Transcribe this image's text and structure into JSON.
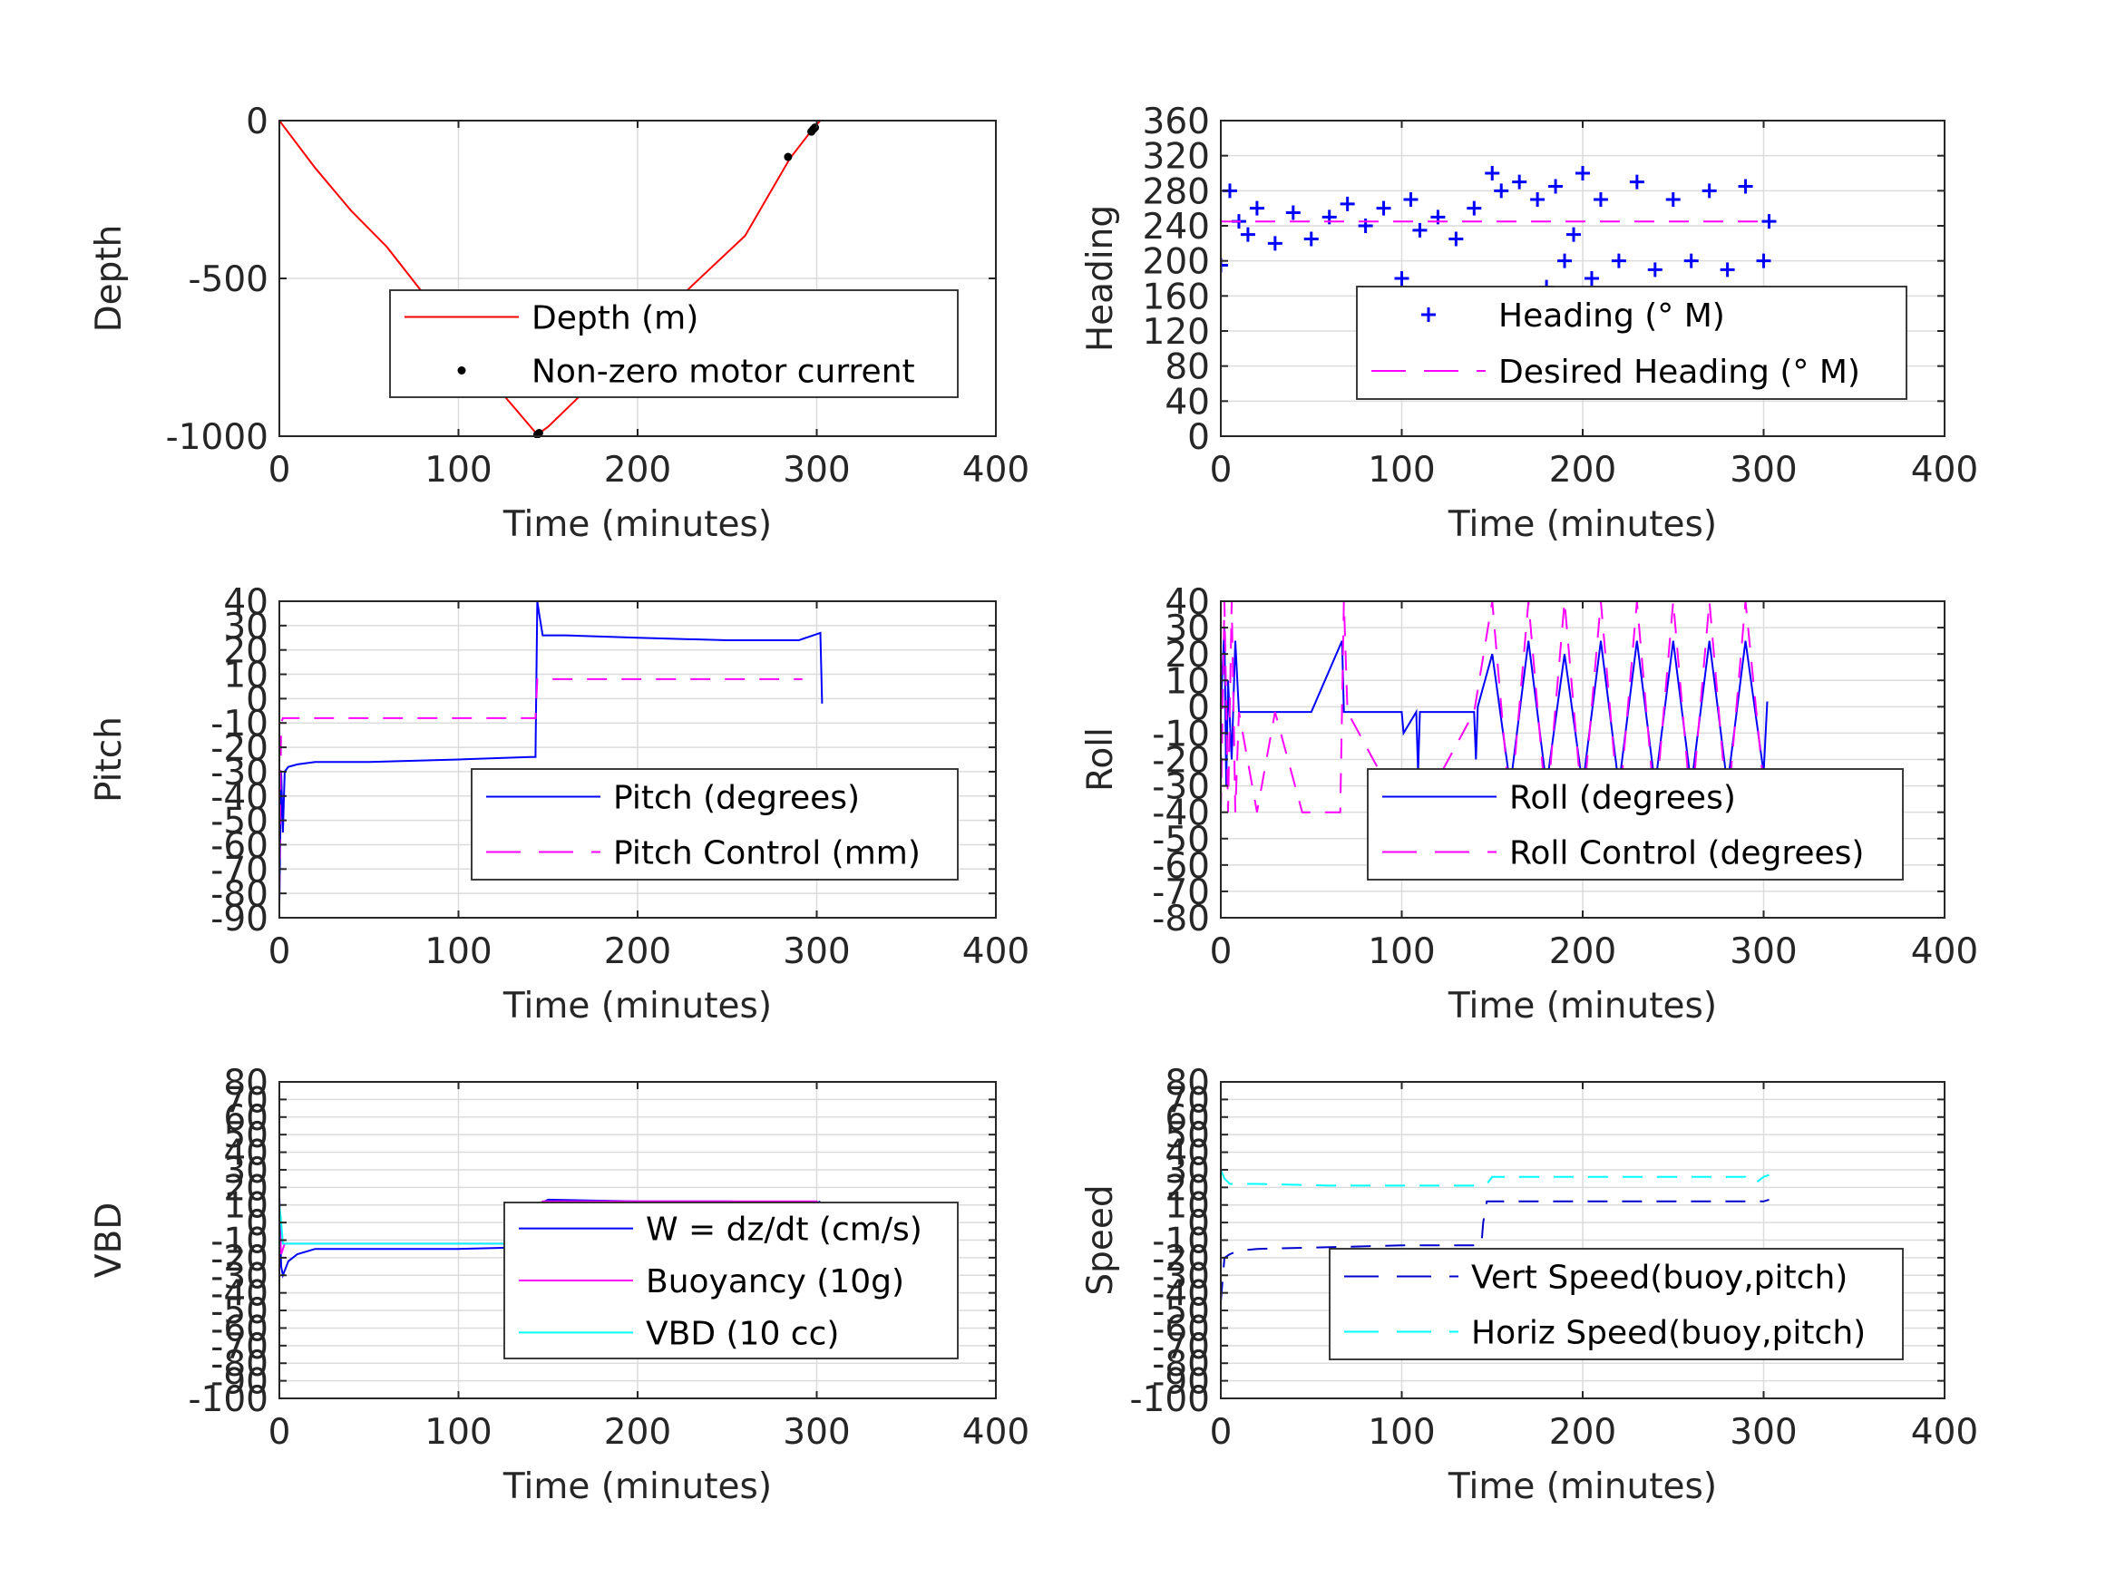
{
  "chart_data": [
    {
      "type": "line",
      "ylabel": "Depth",
      "xlabel": "Time (minutes)",
      "xlim": [
        0,
        400
      ],
      "ylim": [
        -1000,
        0
      ],
      "xticks": [
        0,
        100,
        200,
        300,
        400
      ],
      "yticks": [
        -1000,
        -500,
        0
      ],
      "grid": true,
      "legend_position": "center-right",
      "series": [
        {
          "name": "Depth (m)",
          "color": "#ff0000",
          "style": "solid",
          "marker": "none",
          "x": [
            0,
            20,
            40,
            60,
            80,
            100,
            120,
            144,
            150,
            170,
            200,
            230,
            260,
            285,
            298,
            302
          ],
          "y": [
            0,
            -150,
            -285,
            -400,
            -545,
            -690,
            -835,
            -995,
            -970,
            -860,
            -690,
            -525,
            -365,
            -120,
            -25,
            0
          ]
        },
        {
          "name": "Non-zero motor current",
          "color": "#000000",
          "style": "none",
          "marker": "dot",
          "x": [
            144,
            145,
            284,
            297,
            298,
            299
          ],
          "y": [
            -995,
            -990,
            -115,
            -35,
            -28,
            -22
          ]
        }
      ]
    },
    {
      "type": "line",
      "ylabel": "Heading",
      "xlabel": "Time (minutes)",
      "xlim": [
        0,
        400
      ],
      "ylim": [
        0,
        360
      ],
      "xticks": [
        0,
        100,
        200,
        300,
        400
      ],
      "yticks": [
        0,
        40,
        80,
        120,
        160,
        200,
        240,
        280,
        320,
        360
      ],
      "grid": true,
      "legend_position": "center-right",
      "series": [
        {
          "name": "Heading (° M)",
          "color": "#0000ff",
          "style": "none",
          "marker": "plus",
          "x": [
            0,
            5,
            10,
            15,
            20,
            30,
            40,
            50,
            60,
            70,
            80,
            90,
            100,
            105,
            110,
            120,
            130,
            140,
            150,
            155,
            160,
            165,
            170,
            175,
            180,
            185,
            190,
            195,
            200,
            205,
            210,
            220,
            230,
            240,
            250,
            260,
            270,
            280,
            290,
            300,
            303
          ],
          "y": [
            195,
            280,
            245,
            230,
            260,
            220,
            255,
            225,
            250,
            265,
            240,
            260,
            180,
            270,
            235,
            250,
            225,
            260,
            300,
            280,
            150,
            290,
            140,
            270,
            170,
            285,
            200,
            230,
            300,
            180,
            270,
            200,
            290,
            190,
            270,
            200,
            280,
            190,
            285,
            200,
            245
          ]
        },
        {
          "name": "Desired Heading (° M)",
          "color": "#ff00ff",
          "style": "dashed",
          "marker": "none",
          "x": [
            0,
            300
          ],
          "y": [
            245,
            245
          ]
        }
      ]
    },
    {
      "type": "line",
      "ylabel": "Pitch",
      "xlabel": "Time (minutes)",
      "xlim": [
        0,
        400
      ],
      "ylim": [
        -90,
        40
      ],
      "xticks": [
        0,
        100,
        200,
        300,
        400
      ],
      "yticks": [
        -90,
        -80,
        -70,
        -60,
        -50,
        -40,
        -30,
        -20,
        -10,
        0,
        10,
        20,
        30,
        40
      ],
      "grid": true,
      "legend_position": "center-right",
      "series": [
        {
          "name": "Pitch (degrees)",
          "color": "#0000ff",
          "style": "solid",
          "marker": "none",
          "x": [
            0,
            1,
            2,
            3,
            5,
            10,
            20,
            50,
            100,
            140,
            143,
            144,
            145,
            147,
            160,
            200,
            250,
            290,
            302,
            303
          ],
          "y": [
            -85,
            -30,
            -55,
            -30,
            -28,
            -27,
            -26,
            -26,
            -25,
            -24,
            -24,
            40,
            35,
            26,
            26,
            25,
            24,
            24,
            27,
            -2
          ]
        },
        {
          "name": "Pitch Control (mm)",
          "color": "#ff00ff",
          "style": "dashed",
          "marker": "none",
          "x": [
            0,
            1,
            2,
            5,
            143,
            144,
            145,
            150,
            292
          ],
          "y": [
            -80,
            -10,
            -8,
            -8,
            -8,
            8,
            8,
            8,
            8
          ]
        }
      ]
    },
    {
      "type": "line",
      "ylabel": "Roll",
      "xlabel": "Time (minutes)",
      "xlim": [
        0,
        400
      ],
      "ylim": [
        -80,
        40
      ],
      "xticks": [
        0,
        100,
        200,
        300,
        400
      ],
      "yticks": [
        -80,
        -70,
        -60,
        -50,
        -40,
        -30,
        -20,
        -10,
        0,
        10,
        20,
        30,
        40
      ],
      "grid": true,
      "legend_position": "center-right",
      "series": [
        {
          "name": "Roll (degrees)",
          "color": "#0000ff",
          "style": "solid",
          "marker": "none",
          "x": [
            0,
            2,
            3,
            4,
            6,
            8,
            10,
            30,
            50,
            67,
            68,
            69,
            100,
            101,
            108,
            109,
            110,
            140,
            141,
            142,
            150,
            160,
            170,
            180,
            190,
            200,
            210,
            220,
            230,
            240,
            250,
            260,
            270,
            280,
            290,
            300,
            302
          ],
          "y": [
            0,
            30,
            -30,
            10,
            -20,
            25,
            -2,
            -2,
            -2,
            25,
            -2,
            -2,
            -2,
            -10,
            -2,
            -25,
            -2,
            -2,
            -20,
            0,
            20,
            -30,
            25,
            -30,
            20,
            -30,
            25,
            -30,
            25,
            -30,
            25,
            -30,
            25,
            -30,
            25,
            -25,
            2
          ]
        },
        {
          "name": "Roll Control (degrees)",
          "color": "#ff00ff",
          "style": "dashed",
          "marker": "none",
          "x": [
            0,
            2,
            4,
            6,
            8,
            10,
            20,
            30,
            45,
            66,
            68,
            70,
            100,
            110,
            140,
            150,
            160,
            170,
            180,
            190,
            200,
            210,
            220,
            230,
            240,
            250,
            260,
            270,
            280,
            290,
            300
          ],
          "y": [
            -40,
            40,
            -40,
            40,
            -40,
            -2,
            -40,
            -2,
            -40,
            -40,
            40,
            -2,
            -40,
            -40,
            -2,
            40,
            -40,
            40,
            -40,
            40,
            -40,
            40,
            -40,
            40,
            -40,
            40,
            -40,
            40,
            -40,
            40,
            -30
          ]
        }
      ]
    },
    {
      "type": "line",
      "ylabel": "VBD",
      "xlabel": "Time (minutes)",
      "xlim": [
        0,
        400
      ],
      "ylim": [
        -100,
        80
      ],
      "xticks": [
        0,
        100,
        200,
        300,
        400
      ],
      "yticks": [
        -100,
        -90,
        -80,
        -70,
        -60,
        -50,
        -40,
        -30,
        -20,
        -10,
        0,
        10,
        20,
        30,
        40,
        50,
        60,
        70,
        80
      ],
      "grid": true,
      "legend_position": "center-right",
      "series": [
        {
          "name": "W = dz/dt (cm/s)",
          "color": "#0000ff",
          "style": "solid",
          "marker": "none",
          "x": [
            0,
            1,
            2,
            5,
            10,
            20,
            40,
            100,
            140,
            145,
            148,
            150,
            200,
            250,
            300,
            302
          ],
          "y": [
            15,
            -25,
            -30,
            -22,
            -18,
            -15,
            -15,
            -15,
            -14,
            -12,
            12,
            13,
            12,
            12,
            11,
            12
          ]
        },
        {
          "name": "Buoyancy (10g)",
          "color": "#ff00ff",
          "style": "solid",
          "marker": "none",
          "x": [
            0,
            1,
            3,
            145,
            147,
            150,
            300,
            302
          ],
          "y": [
            0,
            -18,
            -12,
            -12,
            12,
            12,
            12,
            10
          ]
        },
        {
          "name": "VBD (10 cc)",
          "color": "#00ffff",
          "style": "solid",
          "marker": "none",
          "x": [
            0,
            1,
            2,
            145,
            147,
            150,
            300,
            302
          ],
          "y": [
            10,
            0,
            -12,
            -12,
            9,
            9,
            9,
            11
          ]
        }
      ]
    },
    {
      "type": "line",
      "ylabel": "Speed",
      "xlabel": "Time (minutes)",
      "xlim": [
        0,
        400
      ],
      "ylim": [
        -100,
        80
      ],
      "xticks": [
        0,
        100,
        200,
        300,
        400
      ],
      "yticks": [
        -100,
        -90,
        -80,
        -70,
        -60,
        -50,
        -40,
        -30,
        -20,
        -10,
        0,
        10,
        20,
        30,
        40,
        50,
        60,
        70,
        80
      ],
      "grid": true,
      "legend_position": "center-right",
      "series": [
        {
          "name": "Vert Speed(buoy,pitch)",
          "color": "#0000cc",
          "style": "dashed",
          "marker": "none",
          "x": [
            0,
            2,
            5,
            10,
            20,
            60,
            100,
            144,
            145,
            147,
            150,
            200,
            250,
            300,
            303
          ],
          "y": [
            -45,
            -20,
            -18,
            -16,
            -15,
            -14,
            -13,
            -13,
            0,
            12,
            12,
            12,
            12,
            12,
            13
          ]
        },
        {
          "name": "Horiz Speed(buoy,pitch)",
          "color": "#00ffff",
          "style": "dashed",
          "marker": "none",
          "x": [
            0,
            2,
            5,
            10,
            20,
            60,
            100,
            144,
            147,
            150,
            200,
            250,
            290,
            295,
            300,
            303
          ],
          "y": [
            30,
            25,
            22,
            22,
            22,
            21,
            21,
            21,
            22,
            26,
            26,
            26,
            26,
            22,
            26,
            27
          ]
        }
      ]
    }
  ]
}
